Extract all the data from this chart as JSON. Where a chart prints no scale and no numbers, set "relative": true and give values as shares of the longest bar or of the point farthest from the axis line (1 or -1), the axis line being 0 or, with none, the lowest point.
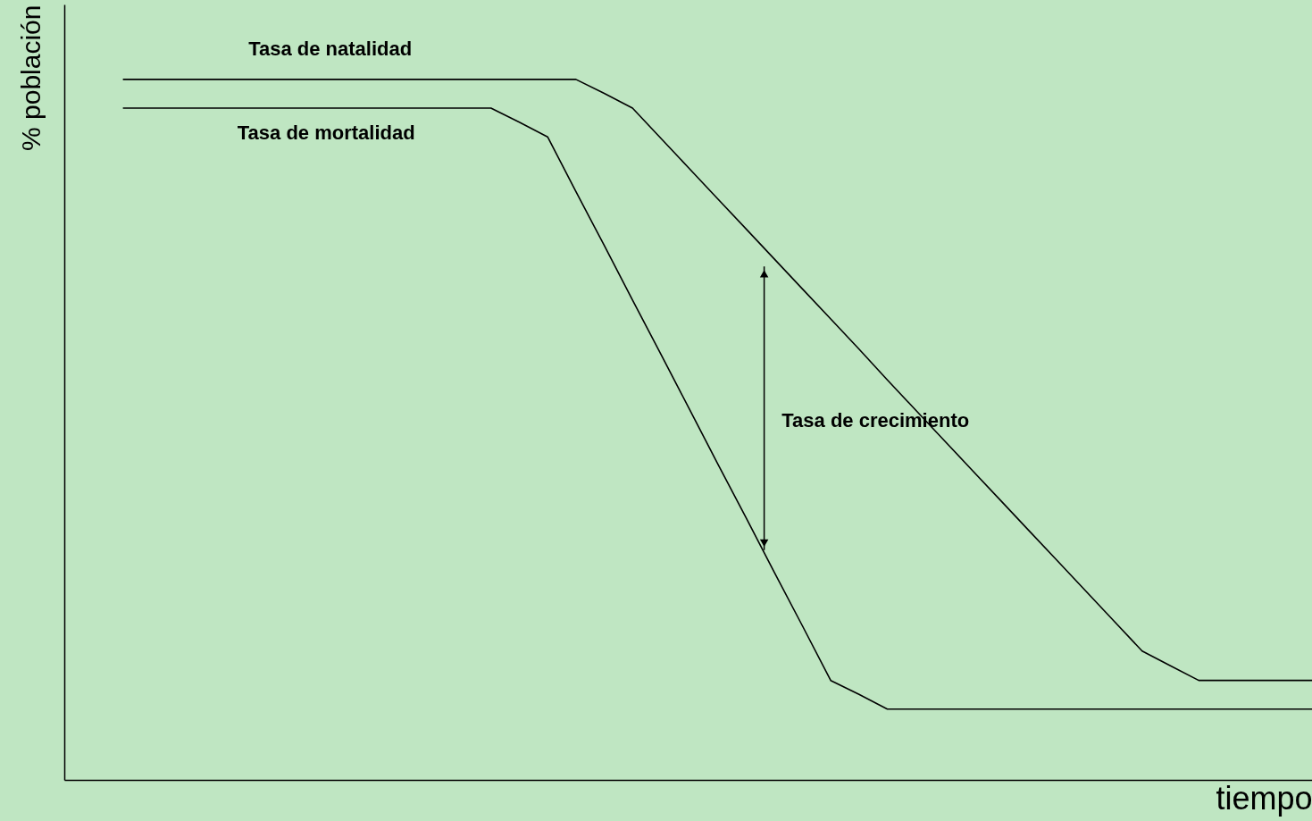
{
  "chart_data": {
    "type": "line",
    "relative": true,
    "xlabel": "tiempo",
    "ylabel": "% población",
    "tick_labels": false,
    "marker": "none",
    "line_style": "solid",
    "categories": [
      null,
      null,
      null,
      null,
      null,
      null,
      null,
      null,
      null,
      null,
      null,
      null,
      null,
      null,
      null,
      null,
      null,
      null,
      null,
      null,
      null,
      null,
      null,
      null,
      null,
      null,
      null,
      null,
      null,
      null,
      null,
      null,
      null,
      null,
      null,
      null,
      null,
      null,
      null,
      null,
      null,
      null,
      null
    ],
    "series": [
      {
        "name": "Tasa de natalidad",
        "color": "#000000",
        "values": [
          1.0,
          1.0,
          1.0,
          1.0,
          1.0,
          1.0,
          1.0,
          1.0,
          1.0,
          1.0,
          1.0,
          1.0,
          1.0,
          1.0,
          1.0,
          1.0,
          1.0,
          0.98,
          0.959,
          0.916,
          0.873,
          0.83,
          0.787,
          0.744,
          0.701,
          0.658,
          0.615,
          0.571,
          0.528,
          0.485,
          0.442,
          0.399,
          0.356,
          0.313,
          0.27,
          0.227,
          0.184,
          0.163,
          0.142,
          0.142,
          0.142,
          0.142,
          0.142
        ]
      },
      {
        "name": "Tasa de mortalidad",
        "color": "#000000",
        "values": [
          0.959,
          0.959,
          0.959,
          0.959,
          0.959,
          0.959,
          0.959,
          0.959,
          0.959,
          0.959,
          0.959,
          0.959,
          0.959,
          0.959,
          0.939,
          0.918,
          0.84,
          0.763,
          0.685,
          0.608,
          0.53,
          0.452,
          0.375,
          0.297,
          0.22,
          0.142,
          0.122,
          0.101,
          0.101,
          0.101,
          0.101,
          0.101,
          0.101,
          0.101,
          0.101,
          0.101,
          0.101,
          0.101,
          0.101,
          0.101,
          0.101,
          0.101,
          0.101
        ]
      }
    ],
    "annotations": [
      "Tasa de crecimiento"
    ]
  }
}
